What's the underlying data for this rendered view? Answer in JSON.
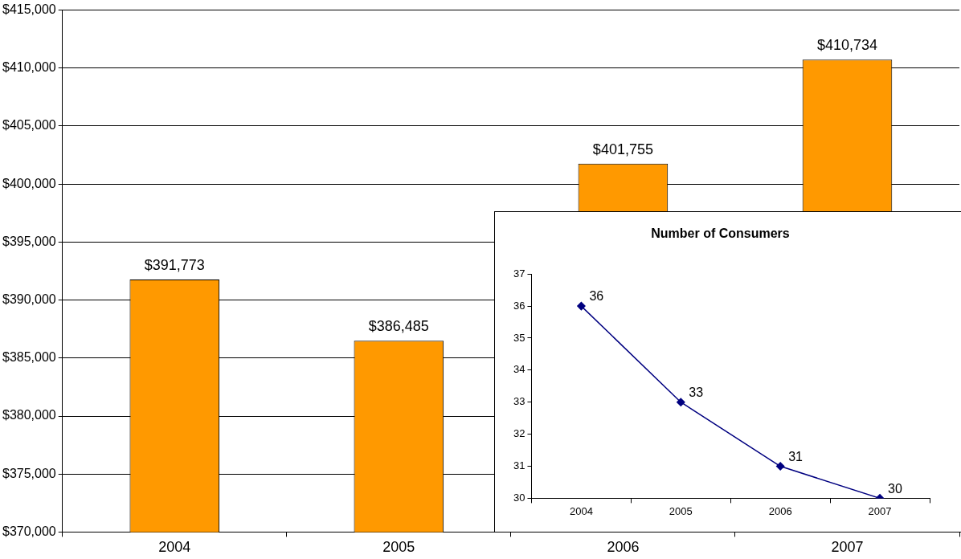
{
  "chart_data": [
    {
      "type": "bar",
      "categories": [
        "2004",
        "2005",
        "2006",
        "2007"
      ],
      "values": [
        391773,
        386485,
        401755,
        410734
      ],
      "color": "#ff9900",
      "value_labels": [
        "$391,773",
        "$386,485",
        "$401,755",
        "$410,734"
      ],
      "ylim": [
        370000,
        415000
      ],
      "yticks": [
        {
          "value": 370000,
          "label": "$370,000"
        },
        {
          "value": 375000,
          "label": "$375,000"
        },
        {
          "value": 380000,
          "label": "$380,000"
        },
        {
          "value": 385000,
          "label": "$385,000"
        },
        {
          "value": 390000,
          "label": "$390,000"
        },
        {
          "value": 395000,
          "label": "$395,000"
        },
        {
          "value": 400000,
          "label": "$400,000"
        },
        {
          "value": 405000,
          "label": "$405,000"
        },
        {
          "value": 410000,
          "label": "$410,000"
        },
        {
          "value": 415000,
          "label": "$415,000"
        }
      ],
      "grid": "y"
    },
    {
      "type": "line",
      "title": "Number of Consumers",
      "categories": [
        "2004",
        "2005",
        "2006",
        "2007"
      ],
      "values": [
        36,
        33,
        31,
        30
      ],
      "color": "#000080",
      "marker": "diamond",
      "data_labels": true,
      "ylim": [
        30,
        37
      ],
      "yticks": [
        30,
        31,
        32,
        33,
        34,
        35,
        36,
        37
      ]
    }
  ]
}
